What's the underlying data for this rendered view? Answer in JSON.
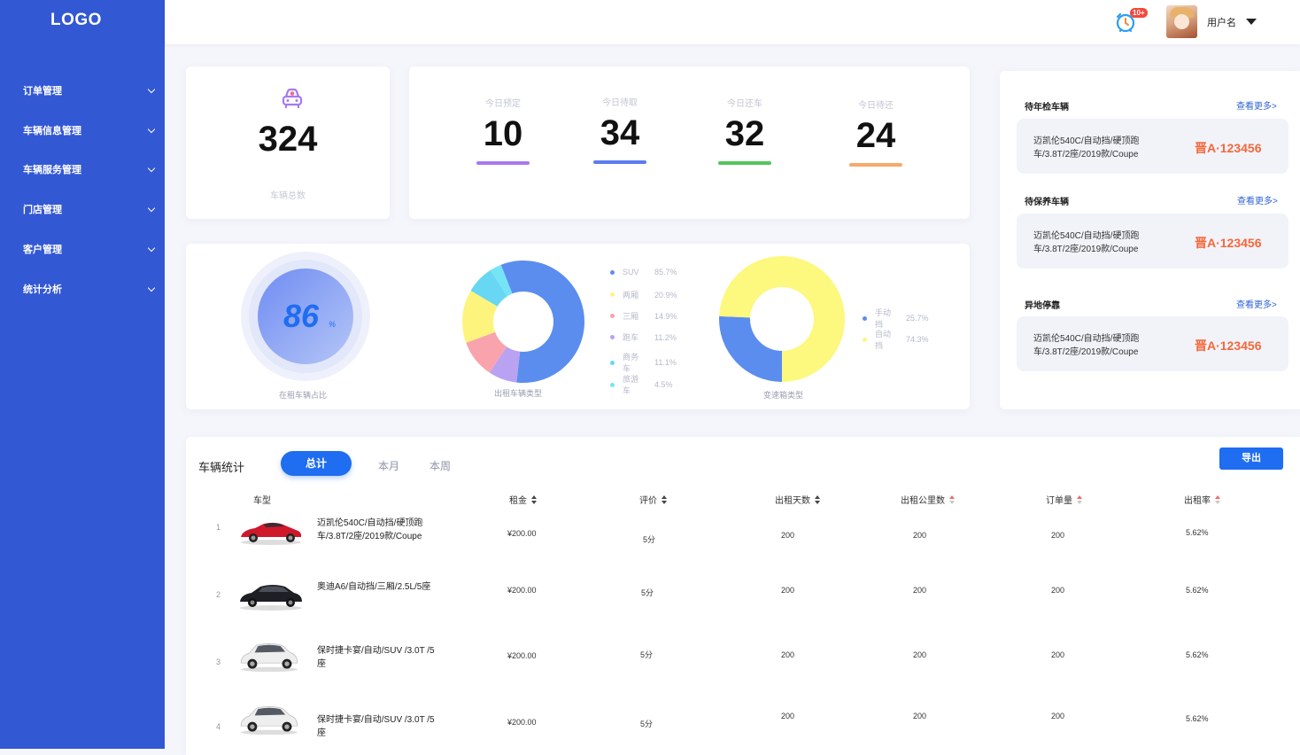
{
  "sidebar": {
    "logo": "LOGO",
    "items": [
      {
        "label": "订单管理"
      },
      {
        "label": "车辆信息管理"
      },
      {
        "label": "车辆服务管理"
      },
      {
        "label": "门店管理"
      },
      {
        "label": "客户管理"
      },
      {
        "label": "统计分析"
      }
    ]
  },
  "header": {
    "notification_badge": "10+",
    "username": "用户名"
  },
  "total": {
    "value": "324",
    "label": "车辆总数"
  },
  "today_stats": [
    {
      "label": "今日预定",
      "value": "10",
      "color": "#a778f2"
    },
    {
      "label": "今日待取",
      "value": "34",
      "color": "#5b7cf0"
    },
    {
      "label": "今日还车",
      "value": "32",
      "color": "#52c55a"
    },
    {
      "label": "今日待还",
      "value": "24",
      "color": "#f5a96b"
    }
  ],
  "rental_ratio": {
    "value": "86",
    "unit": "%",
    "label": "在租车辆占比"
  },
  "chart_data": [
    {
      "type": "pie",
      "title": "出租车辆类型",
      "categories": [
        "SUV",
        "两厢",
        "三厢",
        "跑车",
        "商务车",
        "旅游车"
      ],
      "values": [
        85.7,
        20.9,
        14.9,
        11.2,
        11.1,
        4.5
      ],
      "labels": [
        "85.7%",
        "20.9%",
        "14.9%",
        "11.2%",
        "11.1%",
        "4.5%"
      ],
      "colors": [
        "#5b8def",
        "#fdf47e",
        "#f9a3ad",
        "#b9a2f2",
        "#67d7f3",
        "#74e4f6"
      ],
      "slice_order": [
        "SUV",
        "跑车",
        "三厢",
        "两厢",
        "商务车",
        "旅游车"
      ],
      "legend": "right"
    },
    {
      "type": "pie",
      "title": "变速箱类型",
      "categories": [
        "手动挡",
        "自动挡"
      ],
      "values": [
        25.7,
        74.3
      ],
      "labels": [
        "25.7%",
        "74.3%"
      ],
      "colors": [
        "#5b8def",
        "#fdf87e"
      ],
      "legend": "right"
    }
  ],
  "right_panel": {
    "more_label": "查看更多>",
    "sections": [
      {
        "title": "待年检车辆",
        "car": "迈凯伦540C/自动挡/硬顶跑车/3.8T/2座/2019款/Coupe",
        "plate": "晋A·123456"
      },
      {
        "title": "待保养车辆",
        "car": "迈凯伦540C/自动挡/硬顶跑车/3.8T/2座/2019款/Coupe",
        "plate": "晋A·123456"
      },
      {
        "title": "异地停靠",
        "car": "迈凯伦540C/自动挡/硬顶跑车/3.8T/2座/2019款/Coupe",
        "plate": "晋A·123456"
      }
    ]
  },
  "vehicle_stats": {
    "title": "车辆统计",
    "tabs": [
      "总计",
      "本月",
      "本周"
    ],
    "export_label": "导出",
    "columns": [
      "车型",
      "租金",
      "评价",
      "出租天数",
      "出租公里数",
      "订单量",
      "出租率"
    ],
    "rows": [
      {
        "no": "1",
        "car": "迈凯伦540C/自动挡/硬顶跑车/3.8T/2座/2019款/Coupe",
        "rent": "¥200.00",
        "rating": "5分",
        "days": "200",
        "km": "200",
        "orders": "200",
        "rate": "5.62%"
      },
      {
        "no": "2",
        "car": "奥迪A6/自动挡/三厢/2.5L/5座",
        "rent": "¥200.00",
        "rating": "5分",
        "days": "200",
        "km": "200",
        "orders": "200",
        "rate": "5.62%"
      },
      {
        "no": "3",
        "car": "保时捷卡宴/自动/SUV /3.0T /5座",
        "rent": "¥200.00",
        "rating": "5分",
        "days": "200",
        "km": "200",
        "orders": "200",
        "rate": "5.62%"
      },
      {
        "no": "4",
        "car": "保时捷卡宴/自动/SUV /3.0T /5座",
        "rent": "¥200.00",
        "rating": "5分",
        "days": "200",
        "km": "200",
        "orders": "200",
        "rate": "5.62%"
      }
    ]
  }
}
